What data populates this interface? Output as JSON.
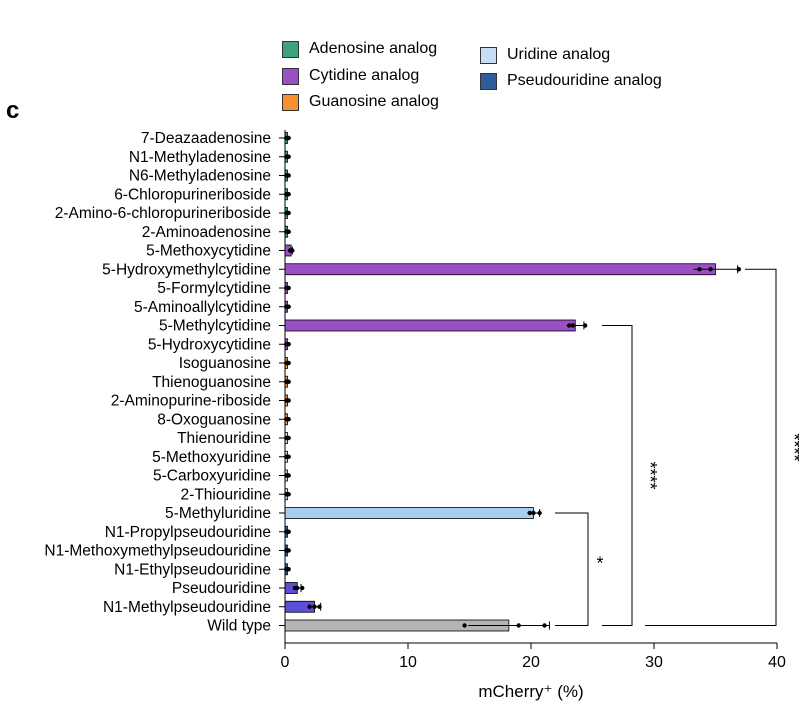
{
  "panel_label": "c",
  "legend": [
    {
      "name": "Adenosine analog",
      "color": "#3aa377"
    },
    {
      "name": "Cytidine analog",
      "color": "#9b4fc4"
    },
    {
      "name": "Guanosine analog",
      "color": "#f5912e"
    },
    {
      "name": "Uridine analog",
      "color": "#c5def4"
    },
    {
      "name": "Pseudouridine analog",
      "color": "#2f5c9a"
    }
  ],
  "chart_data": {
    "type": "bar",
    "orientation": "horizontal",
    "xlabel": "mCherry⁺ (%)",
    "xlim": [
      0,
      40
    ],
    "xticks": [
      0,
      10,
      20,
      30,
      40
    ],
    "categories": [
      "7-Deazaadenosine",
      "N1-Methyladenosine",
      "N6-Methyladenosine",
      "6-Chloropurineriboside",
      "2-Amino-6-chloropurineriboside",
      "2-Aminoadenosine",
      "5-Methoxycytidine",
      "5-Hydroxymethylcytidine",
      "5-Formylcytidine",
      "5-Aminoallylcytidine",
      "5-Methylcytidine",
      "5-Hydroxycytidine",
      "Isoguanosine",
      "Thienoguanosine",
      "2-Aminopurine-riboside",
      "8-Oxoguanosine",
      "Thienouridine",
      "5-Methoxyuridine",
      "5-Carboxyuridine",
      "2-Thiouridine",
      "5-Methyluridine",
      "N1-Propylpseudouridine",
      "N1-Methoxymethylpseudouridine",
      "N1-Ethylpseudouridine",
      "Pseudouridine",
      "N1-Methylpseudouridine",
      "Wild type"
    ],
    "values": [
      0.2,
      0.2,
      0.2,
      0.2,
      0.2,
      0.2,
      0.5,
      35.0,
      0.2,
      0.2,
      23.6,
      0.2,
      0.2,
      0.2,
      0.2,
      0.2,
      0.2,
      0.2,
      0.2,
      0.2,
      20.2,
      0.2,
      0.2,
      0.2,
      1.0,
      2.4,
      18.2
    ],
    "errors": [
      0,
      0,
      0,
      0,
      0,
      0,
      0.1,
      1.8,
      0,
      0,
      0.7,
      0,
      0,
      0,
      0,
      0,
      0,
      0,
      0,
      0,
      0.5,
      0,
      0,
      0,
      0.3,
      0.5,
      3.3
    ],
    "points": [
      [
        0.1,
        0.2,
        0.3
      ],
      [
        0.1,
        0.2,
        0.3
      ],
      [
        0.1,
        0.2,
        0.3
      ],
      [
        0.1,
        0.2,
        0.3
      ],
      [
        0.1,
        0.2,
        0.3
      ],
      [
        0.1,
        0.2,
        0.3
      ],
      [
        0.4,
        0.5,
        0.6
      ],
      [
        33.7,
        34.6,
        36.9
      ],
      [
        0.1,
        0.2,
        0.3
      ],
      [
        0.1,
        0.2,
        0.3
      ],
      [
        23.1,
        23.4,
        24.4
      ],
      [
        0.1,
        0.2,
        0.3
      ],
      [
        0.1,
        0.2,
        0.3
      ],
      [
        0.1,
        0.2,
        0.3
      ],
      [
        0.1,
        0.2,
        0.3
      ],
      [
        0.1,
        0.2,
        0.3
      ],
      [
        0.1,
        0.2,
        0.3
      ],
      [
        0.1,
        0.2,
        0.3
      ],
      [
        0.1,
        0.2,
        0.3
      ],
      [
        0.1,
        0.2,
        0.3
      ],
      [
        19.9,
        20.2,
        20.7
      ],
      [
        0.1,
        0.2,
        0.3
      ],
      [
        0.1,
        0.2,
        0.3
      ],
      [
        0.1,
        0.2,
        0.3
      ],
      [
        0.8,
        1.0,
        1.4
      ],
      [
        2.0,
        2.4,
        2.8
      ],
      [
        14.6,
        19.0,
        21.1
      ]
    ],
    "colors": [
      "#3aa377",
      "#3aa377",
      "#3aa377",
      "#3aa377",
      "#3aa377",
      "#3aa377",
      "#9b4fc4",
      "#9b4fc4",
      "#9b4fc4",
      "#9b4fc4",
      "#9b4fc4",
      "#9b4fc4",
      "#f5912e",
      "#f5912e",
      "#f5912e",
      "#f5912e",
      "#c5def4",
      "#c5def4",
      "#c5def4",
      "#c5def4",
      "#a9cdf0",
      "#2f5c9a",
      "#2f5c9a",
      "#2f5c9a",
      "#5a4fd6",
      "#5a4fd6",
      "#b5b5b5"
    ],
    "significance": [
      {
        "from": "5-Methyluridine",
        "to": "Wild type",
        "label": "*"
      },
      {
        "from": "5-Methylcytidine",
        "to": "Wild type",
        "label": "****"
      },
      {
        "from": "5-Hydroxymethylcytidine",
        "to": "Wild type",
        "label": "****"
      }
    ]
  }
}
